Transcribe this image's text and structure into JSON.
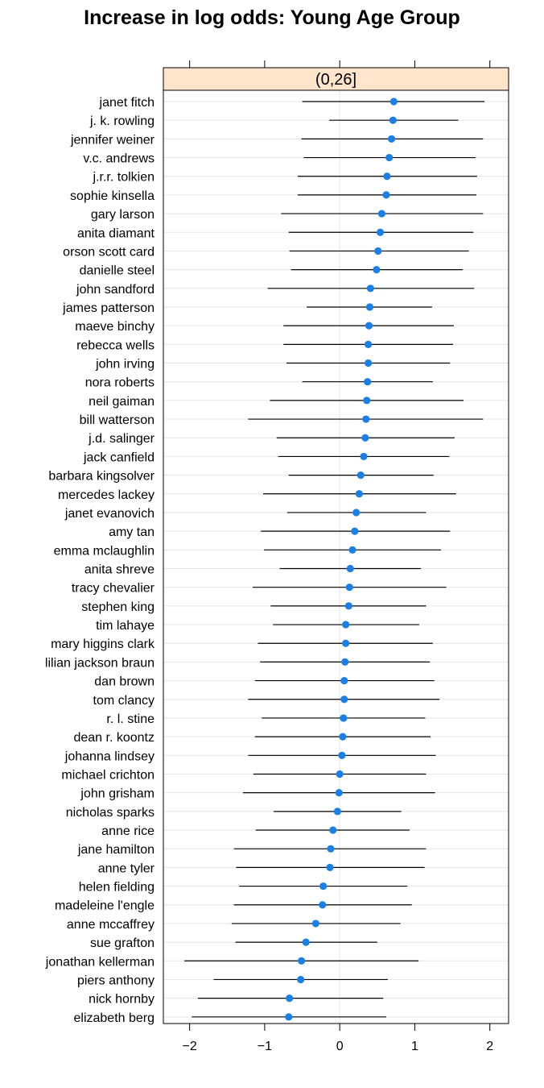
{
  "chart_data": {
    "type": "scatter",
    "subtype": "dotplot-with-intervals",
    "title": "Increase in log odds: Young Age Group",
    "panel_label": "(0,26]",
    "xlim": [
      -2.35,
      2.25
    ],
    "x_ticks": [
      -2,
      -1,
      0,
      1,
      2
    ],
    "x_tick_labels": [
      "−2",
      "−1",
      "0",
      "1",
      "2"
    ],
    "xlabel": "",
    "ylabel": "",
    "grid": true,
    "colors": {
      "point": "#1a80e6",
      "interval": "#000000",
      "strip": "#ffe5cc",
      "grid": "#e6e6e6",
      "zero_line": "#e6e6e6"
    },
    "categories": [
      "janet fitch",
      "j. k. rowling",
      "jennifer weiner",
      "v.c. andrews",
      "j.r.r. tolkien",
      "sophie kinsella",
      "gary larson",
      "anita diamant",
      "orson scott card",
      "danielle steel",
      "john sandford",
      "james patterson",
      "maeve binchy",
      "rebecca wells",
      "john irving",
      "nora roberts",
      "neil gaiman",
      "bill watterson",
      "j.d. salinger",
      "jack canfield",
      "barbara kingsolver",
      "mercedes lackey",
      "janet evanovich",
      "amy tan",
      "emma mclaughlin",
      "anita shreve",
      "tracy chevalier",
      "stephen king",
      "tim lahaye",
      "mary higgins clark",
      "lilian jackson braun",
      "dan brown",
      "tom clancy",
      "r. l. stine",
      "dean r. koontz",
      "johanna lindsey",
      "michael crichton",
      "john grisham",
      "nicholas sparks",
      "anne rice",
      "jane hamilton",
      "anne tyler",
      "helen fielding",
      "madeleine l'engle",
      "anne mccaffrey",
      "sue grafton",
      "jonathan kellerman",
      "piers anthony",
      "nick hornby",
      "elizabeth berg"
    ],
    "estimate": [
      0.72,
      0.71,
      0.69,
      0.66,
      0.63,
      0.62,
      0.56,
      0.54,
      0.51,
      0.49,
      0.41,
      0.4,
      0.39,
      0.38,
      0.38,
      0.37,
      0.36,
      0.35,
      0.34,
      0.32,
      0.28,
      0.26,
      0.22,
      0.2,
      0.17,
      0.14,
      0.13,
      0.12,
      0.08,
      0.08,
      0.07,
      0.06,
      0.06,
      0.05,
      0.04,
      0.03,
      0.0,
      -0.01,
      -0.03,
      -0.09,
      -0.12,
      -0.13,
      -0.22,
      -0.23,
      -0.32,
      -0.45,
      -0.51,
      -0.52,
      -0.67,
      -0.68
    ],
    "lower": [
      -0.5,
      -0.14,
      -0.51,
      -0.48,
      -0.56,
      -0.56,
      -0.78,
      -0.68,
      -0.67,
      -0.65,
      -0.96,
      -0.44,
      -0.75,
      -0.75,
      -0.71,
      -0.5,
      -0.93,
      -1.22,
      -0.84,
      -0.82,
      -0.68,
      -1.02,
      -0.7,
      -1.05,
      -1.01,
      -0.8,
      -1.16,
      -0.92,
      -0.89,
      -1.09,
      -1.06,
      -1.13,
      -1.22,
      -1.04,
      -1.13,
      -1.22,
      -1.15,
      -1.29,
      -0.88,
      -1.12,
      -1.41,
      -1.38,
      -1.34,
      -1.41,
      -1.44,
      -1.39,
      -2.07,
      -1.68,
      -1.89,
      -1.97
    ],
    "upper": [
      1.93,
      1.58,
      1.91,
      1.81,
      1.83,
      1.82,
      1.91,
      1.78,
      1.72,
      1.64,
      1.79,
      1.23,
      1.52,
      1.51,
      1.47,
      1.24,
      1.65,
      1.91,
      1.53,
      1.46,
      1.25,
      1.55,
      1.15,
      1.47,
      1.35,
      1.08,
      1.42,
      1.15,
      1.06,
      1.24,
      1.2,
      1.26,
      1.33,
      1.14,
      1.21,
      1.28,
      1.15,
      1.27,
      0.82,
      0.93,
      1.15,
      1.13,
      0.9,
      0.96,
      0.81,
      0.5,
      1.05,
      0.64,
      0.58,
      0.62
    ]
  }
}
